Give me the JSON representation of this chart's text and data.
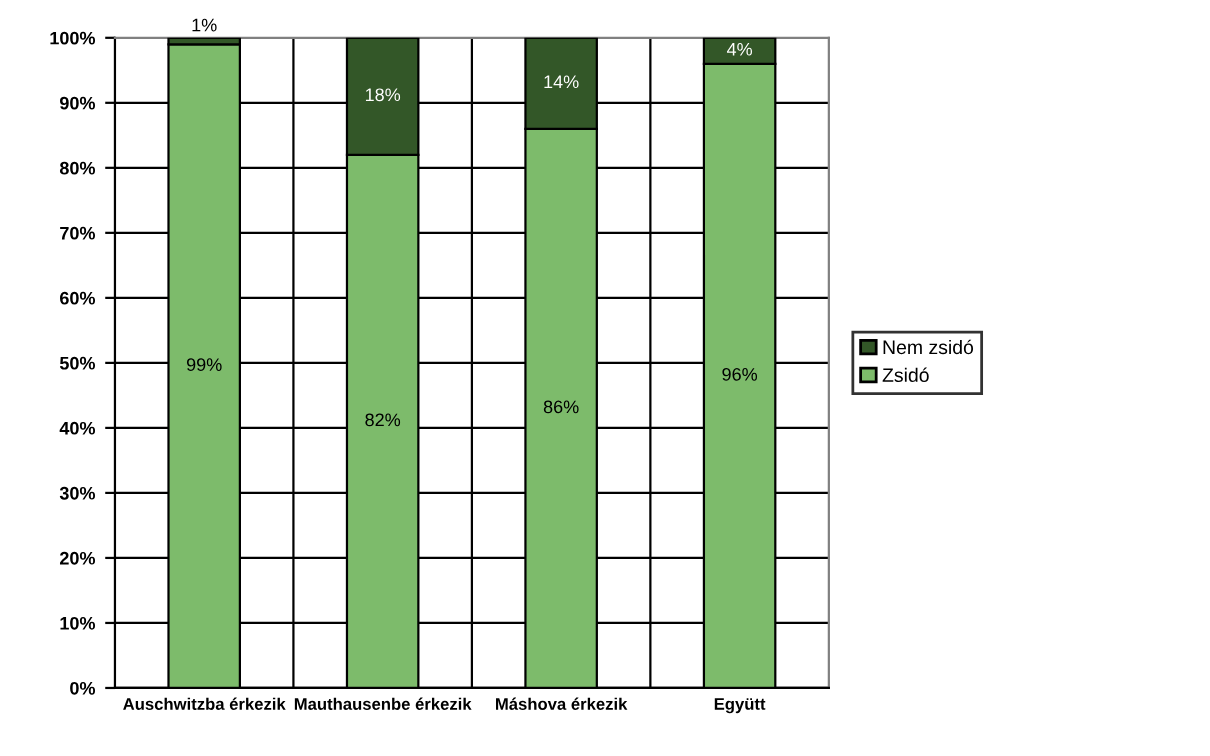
{
  "chart_data": {
    "type": "bar",
    "stacked": true,
    "categories": [
      "Auschwitzba érkezik",
      "Mauthausenbe érkezik",
      "Máshova érkezik",
      "Együtt"
    ],
    "series": [
      {
        "name": "Zsidó",
        "color": "#7dbb6b",
        "values": [
          99,
          82,
          86,
          96
        ],
        "value_labels": [
          "99%",
          "82%",
          "86%",
          "96%"
        ]
      },
      {
        "name": "Nem zsidó",
        "color": "#335728",
        "values": [
          1,
          18,
          14,
          4
        ],
        "value_labels": [
          "1%",
          "18%",
          "14%",
          "4%"
        ]
      }
    ],
    "ylim": [
      0,
      100
    ],
    "yticks": [
      {
        "value": 0,
        "label": "0%"
      },
      {
        "value": 10,
        "label": "10%"
      },
      {
        "value": 20,
        "label": "20%"
      },
      {
        "value": 30,
        "label": "30%"
      },
      {
        "value": 40,
        "label": "40%"
      },
      {
        "value": 50,
        "label": "50%"
      },
      {
        "value": 60,
        "label": "60%"
      },
      {
        "value": 70,
        "label": "70%"
      },
      {
        "value": 80,
        "label": "80%"
      },
      {
        "value": 90,
        "label": "90%"
      },
      {
        "value": 100,
        "label": "100%"
      }
    ],
    "grid": true,
    "legend": "right"
  }
}
